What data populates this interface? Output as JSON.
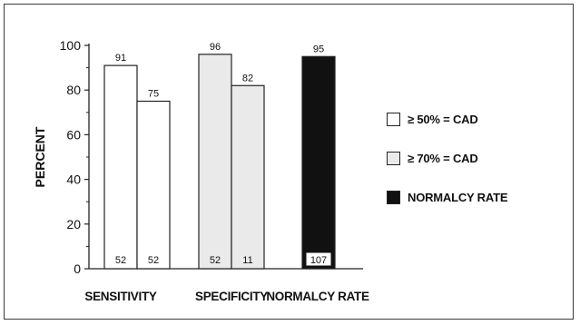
{
  "chart_data": {
    "type": "bar",
    "ylabel": "PERCENT",
    "xlabel": "",
    "ylim": [
      0,
      100
    ],
    "yticks": [
      0,
      20,
      40,
      60,
      80,
      100
    ],
    "grid": false,
    "legend_position": "right",
    "categories": [
      "SENSITIVITY",
      "SPECIFICITY",
      "NORMALCY RATE"
    ],
    "series": [
      {
        "name": "≥ 50% = CAD",
        "color": "#ffffff",
        "values": [
          91,
          75,
          null
        ],
        "counts": [
          "52",
          "52",
          null
        ]
      },
      {
        "name": "≥ 70% = CAD",
        "color": "#eaeaea",
        "values": [
          96,
          82,
          null
        ],
        "counts": [
          "52",
          "11",
          null
        ]
      },
      {
        "name": "NORMALCY RATE",
        "color": "#111111",
        "values": [
          null,
          null,
          95
        ],
        "counts": [
          null,
          null,
          "107"
        ]
      }
    ]
  }
}
